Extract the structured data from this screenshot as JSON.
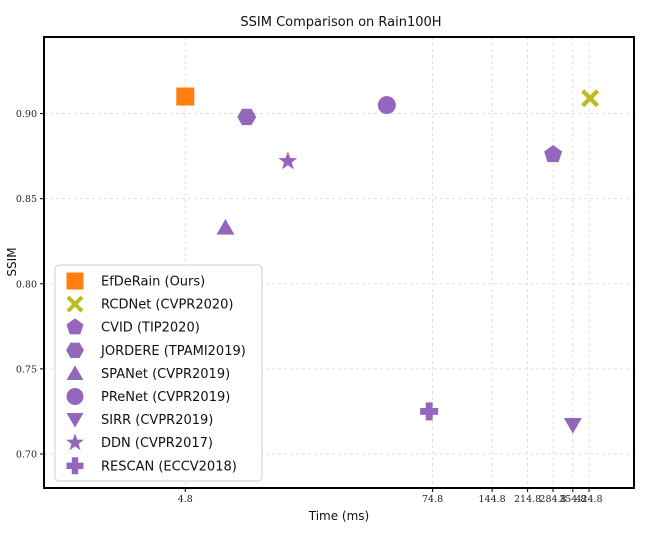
{
  "chart_data": {
    "type": "scatter",
    "title": "SSIM Comparison on Rain100H",
    "xlabel": "Time (ms)",
    "ylabel": "SSIM",
    "grid": true,
    "legend_position": "lower-left",
    "x_ticks": [
      {
        "label": "4.8"
      },
      {
        "label": "74.8"
      },
      {
        "label": "144.8"
      },
      {
        "label": "214.8"
      },
      {
        "label": "284.8"
      },
      {
        "label": "354.8"
      },
      {
        "label": "424.8"
      }
    ],
    "y_ticks": [
      "0.70",
      "0.75",
      "0.80",
      "0.85",
      "0.90"
    ],
    "ylim": [
      0.68,
      0.945
    ],
    "series": [
      {
        "name": "EfDeRain (Ours)",
        "marker": "square",
        "color": "#ff7f0e",
        "x": 4.8,
        "y": 0.91
      },
      {
        "name": "RCDNet (CVPR2020)",
        "marker": "x",
        "color": "#bcbd22",
        "x": 430,
        "y": 0.909
      },
      {
        "name": "CVID (TIP2020)",
        "marker": "pentagon",
        "color": "#9467bd",
        "x": 285,
        "y": 0.876
      },
      {
        "name": "JORDERE (TPAMI2019)",
        "marker": "hexagon",
        "color": "#9467bd",
        "x": 9.5,
        "y": 0.898
      },
      {
        "name": "SPANet (CVPR2019)",
        "marker": "triangle-up",
        "color": "#9467bd",
        "x": 7.5,
        "y": 0.833
      },
      {
        "name": "PReNet (CVPR2019)",
        "marker": "circle",
        "color": "#9467bd",
        "x": 45,
        "y": 0.905
      },
      {
        "name": "SIRR (CVPR2019)",
        "marker": "triangle-down",
        "color": "#9467bd",
        "x": 355,
        "y": 0.717
      },
      {
        "name": "DDN (CVPR2017)",
        "marker": "star",
        "color": "#9467bd",
        "x": 15,
        "y": 0.872
      },
      {
        "name": "RESCAN (ECCV2018)",
        "marker": "plus",
        "color": "#9467bd",
        "x": 72,
        "y": 0.725
      }
    ]
  }
}
